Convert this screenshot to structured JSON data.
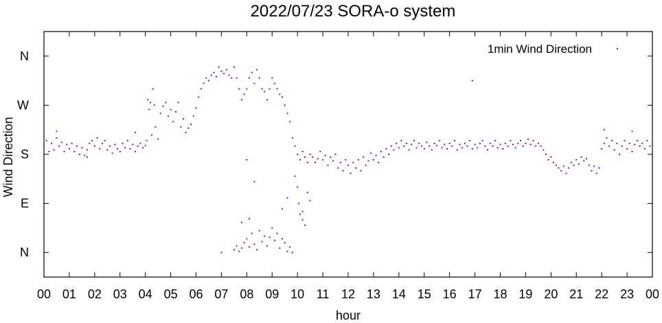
{
  "chart_data": {
    "type": "scatter",
    "title": "2022/07/23 SORA-o system",
    "xlabel": "hour",
    "ylabel": "Wind Direction",
    "xlim": [
      0,
      24
    ],
    "ylim": [
      -45,
      405
    ],
    "x_ticks": [
      {
        "value": 0,
        "label": "00"
      },
      {
        "value": 1,
        "label": "01"
      },
      {
        "value": 2,
        "label": "02"
      },
      {
        "value": 3,
        "label": "03"
      },
      {
        "value": 4,
        "label": "04"
      },
      {
        "value": 5,
        "label": "05"
      },
      {
        "value": 6,
        "label": "06"
      },
      {
        "value": 7,
        "label": "07"
      },
      {
        "value": 8,
        "label": "08"
      },
      {
        "value": 9,
        "label": "09"
      },
      {
        "value": 10,
        "label": "10"
      },
      {
        "value": 11,
        "label": "11"
      },
      {
        "value": 12,
        "label": "12"
      },
      {
        "value": 13,
        "label": "13"
      },
      {
        "value": 14,
        "label": "14"
      },
      {
        "value": 15,
        "label": "15"
      },
      {
        "value": 16,
        "label": "16"
      },
      {
        "value": 17,
        "label": "17"
      },
      {
        "value": 18,
        "label": "18"
      },
      {
        "value": 19,
        "label": "19"
      },
      {
        "value": 20,
        "label": "20"
      },
      {
        "value": 21,
        "label": "21"
      },
      {
        "value": 22,
        "label": "22"
      },
      {
        "value": 23,
        "label": "23"
      },
      {
        "value": 24,
        "label": "00"
      }
    ],
    "y_ticks": [
      {
        "value": 0,
        "label": "N"
      },
      {
        "value": 90,
        "label": "E"
      },
      {
        "value": 180,
        "label": "S"
      },
      {
        "value": 270,
        "label": "W"
      },
      {
        "value": 360,
        "label": "N"
      }
    ],
    "grid": false,
    "legend": {
      "position": "top-right"
    },
    "series": [
      {
        "name": "1min Wind Direction",
        "color": "#9400d3",
        "marker": "dot",
        "points": [
          [
            0.0,
            195
          ],
          [
            0.1,
            205
          ],
          [
            0.2,
            185
          ],
          [
            0.3,
            200
          ],
          [
            0.4,
            188
          ],
          [
            0.5,
            210
          ],
          [
            0.6,
            195
          ],
          [
            0.7,
            202
          ],
          [
            0.8,
            185
          ],
          [
            0.9,
            198
          ],
          [
            1.0,
            190
          ],
          [
            1.1,
            200
          ],
          [
            1.2,
            185
          ],
          [
            1.3,
            195
          ],
          [
            1.4,
            180
          ],
          [
            1.5,
            192
          ],
          [
            1.6,
            178
          ],
          [
            1.7,
            188
          ],
          [
            1.8,
            200
          ],
          [
            1.9,
            205
          ],
          [
            2.0,
            195
          ],
          [
            2.1,
            210
          ],
          [
            2.2,
            190
          ],
          [
            2.3,
            200
          ],
          [
            2.4,
            205
          ],
          [
            2.5,
            188
          ],
          [
            2.6,
            195
          ],
          [
            2.7,
            182
          ],
          [
            2.8,
            198
          ],
          [
            2.9,
            190
          ],
          [
            3.0,
            185
          ],
          [
            3.1,
            200
          ],
          [
            3.2,
            192
          ],
          [
            3.3,
            205
          ],
          [
            3.4,
            190
          ],
          [
            3.5,
            198
          ],
          [
            3.6,
            185
          ],
          [
            3.7,
            195
          ],
          [
            3.8,
            200
          ],
          [
            3.9,
            192
          ],
          [
            4.0,
            196
          ],
          [
            4.05,
            205
          ],
          [
            4.1,
            280
          ],
          [
            4.15,
            262
          ],
          [
            4.2,
            275
          ],
          [
            4.25,
            215
          ],
          [
            4.3,
            300
          ],
          [
            4.35,
            270
          ],
          [
            4.4,
            230
          ],
          [
            4.5,
            208
          ],
          [
            4.6,
            255
          ],
          [
            4.7,
            268
          ],
          [
            4.8,
            275
          ],
          [
            4.9,
            250
          ],
          [
            5.0,
            262
          ],
          [
            5.1,
            240
          ],
          [
            5.2,
            258
          ],
          [
            5.3,
            275
          ],
          [
            5.4,
            230
          ],
          [
            5.5,
            245
          ],
          [
            5.6,
            220
          ],
          [
            5.7,
            228
          ],
          [
            5.8,
            235
          ],
          [
            5.9,
            250
          ],
          [
            6.0,
            265
          ],
          [
            6.1,
            285
          ],
          [
            6.2,
            300
          ],
          [
            6.3,
            310
          ],
          [
            6.4,
            320
          ],
          [
            6.5,
            315
          ],
          [
            6.6,
            325
          ],
          [
            6.7,
            330
          ],
          [
            6.8,
            322
          ],
          [
            6.9,
            340
          ],
          [
            7.0,
            332
          ],
          [
            7.1,
            328
          ],
          [
            7.2,
            335
          ],
          [
            7.3,
            325
          ],
          [
            7.4,
            320
          ],
          [
            7.5,
            340
          ],
          [
            7.6,
            320
          ],
          [
            7.7,
            300
          ],
          [
            7.8,
            280
          ],
          [
            7.9,
            290
          ],
          [
            8.0,
            300
          ],
          [
            8.1,
            320
          ],
          [
            8.2,
            330
          ],
          [
            8.3,
            310
          ],
          [
            8.4,
            335
          ],
          [
            8.5,
            320
          ],
          [
            8.6,
            300
          ],
          [
            8.7,
            295
          ],
          [
            8.8,
            280
          ],
          [
            8.9,
            300
          ],
          [
            9.0,
            320
          ],
          [
            9.1,
            310
          ],
          [
            9.2,
            300
          ],
          [
            9.3,
            290
          ],
          [
            9.4,
            285
          ],
          [
            9.5,
            270
          ],
          [
            9.6,
            255
          ],
          [
            9.7,
            240
          ],
          [
            9.8,
            210
          ],
          [
            9.9,
            195
          ],
          [
            10.0,
            180
          ],
          [
            10.1,
            170
          ],
          [
            10.2,
            185
          ],
          [
            10.3,
            175
          ],
          [
            10.4,
            165
          ],
          [
            10.5,
            180
          ],
          [
            7.5,
            5
          ],
          [
            7.6,
            12
          ],
          [
            7.7,
            2
          ],
          [
            7.8,
            8
          ],
          [
            7.9,
            18
          ],
          [
            8.0,
            25
          ],
          [
            8.1,
            10
          ],
          [
            8.2,
            35
          ],
          [
            8.3,
            15
          ],
          [
            8.4,
            5
          ],
          [
            8.5,
            40
          ],
          [
            8.6,
            20
          ],
          [
            8.7,
            30
          ],
          [
            8.8,
            12
          ],
          [
            8.9,
            28
          ],
          [
            9.0,
            45
          ],
          [
            9.1,
            22
          ],
          [
            9.2,
            35
          ],
          [
            9.3,
            8
          ],
          [
            9.4,
            25
          ],
          [
            9.5,
            18
          ],
          [
            9.6,
            2
          ],
          [
            9.7,
            10
          ],
          [
            9.8,
            0
          ],
          [
            10.0,
            120
          ],
          [
            10.1,
            70
          ],
          [
            10.2,
            60
          ],
          [
            10.3,
            50
          ],
          [
            10.4,
            110
          ],
          [
            10.5,
            95
          ],
          [
            7.0,
            0
          ],
          [
            7.8,
            55
          ],
          [
            8.1,
            62
          ],
          [
            8.0,
            170
          ],
          [
            8.3,
            130
          ],
          [
            9.4,
            80
          ],
          [
            9.6,
            100
          ],
          [
            9.9,
            140
          ],
          [
            10.05,
            90
          ],
          [
            10.2,
            75
          ],
          [
            10.6,
            175
          ],
          [
            10.7,
            165
          ],
          [
            10.8,
            172
          ],
          [
            10.9,
            185
          ],
          [
            11.0,
            170
          ],
          [
            11.1,
            178
          ],
          [
            11.2,
            160
          ],
          [
            11.3,
            175
          ],
          [
            11.4,
            168
          ],
          [
            11.5,
            180
          ],
          [
            11.6,
            155
          ],
          [
            11.7,
            165
          ],
          [
            11.8,
            150
          ],
          [
            11.9,
            170
          ],
          [
            12.0,
            160
          ],
          [
            12.1,
            145
          ],
          [
            12.2,
            165
          ],
          [
            12.3,
            155
          ],
          [
            12.4,
            170
          ],
          [
            12.5,
            150
          ],
          [
            12.6,
            175
          ],
          [
            12.7,
            160
          ],
          [
            12.8,
            168
          ],
          [
            12.9,
            182
          ],
          [
            13.0,
            170
          ],
          [
            13.1,
            178
          ],
          [
            13.2,
            165
          ],
          [
            13.3,
            185
          ],
          [
            13.4,
            175
          ],
          [
            13.5,
            190
          ],
          [
            13.6,
            180
          ],
          [
            13.7,
            195
          ],
          [
            13.8,
            188
          ],
          [
            13.9,
            200
          ],
          [
            14.0,
            192
          ],
          [
            14.1,
            205
          ],
          [
            14.2,
            195
          ],
          [
            14.3,
            200
          ],
          [
            14.4,
            188
          ],
          [
            14.5,
            198
          ],
          [
            14.6,
            205
          ],
          [
            14.7,
            192
          ],
          [
            14.8,
            200
          ],
          [
            14.9,
            195
          ],
          [
            15.0,
            190
          ],
          [
            15.1,
            202
          ],
          [
            15.2,
            195
          ],
          [
            15.3,
            188
          ],
          [
            15.4,
            200
          ],
          [
            15.5,
            196
          ],
          [
            15.6,
            205
          ],
          [
            15.7,
            192
          ],
          [
            15.8,
            198
          ],
          [
            15.9,
            190
          ],
          [
            16.0,
            200
          ],
          [
            16.1,
            195
          ],
          [
            16.2,
            205
          ],
          [
            16.3,
            188
          ],
          [
            16.4,
            198
          ],
          [
            16.5,
            192
          ],
          [
            16.6,
            200
          ],
          [
            16.7,
            195
          ],
          [
            16.8,
            205
          ],
          [
            16.9,
            190
          ],
          [
            17.0,
            198
          ],
          [
            17.1,
            192
          ],
          [
            17.2,
            200
          ],
          [
            17.3,
            205
          ],
          [
            17.4,
            195
          ],
          [
            17.5,
            188
          ],
          [
            17.6,
            200
          ],
          [
            17.7,
            195
          ],
          [
            17.8,
            205
          ],
          [
            17.9,
            192
          ],
          [
            18.0,
            198
          ],
          [
            18.1,
            190
          ],
          [
            18.2,
            200
          ],
          [
            18.3,
            195
          ],
          [
            18.4,
            205
          ],
          [
            18.5,
            198
          ],
          [
            18.6,
            192
          ],
          [
            18.7,
            200
          ],
          [
            18.8,
            205
          ],
          [
            18.9,
            195
          ],
          [
            19.0,
            200
          ],
          [
            19.1,
            208
          ],
          [
            19.2,
            198
          ],
          [
            19.3,
            205
          ],
          [
            19.4,
            195
          ],
          [
            19.5,
            200
          ],
          [
            19.6,
            195
          ],
          [
            19.7,
            188
          ],
          [
            19.8,
            180
          ],
          [
            19.9,
            170
          ],
          [
            20.0,
            175
          ],
          [
            20.1,
            165
          ],
          [
            20.2,
            160
          ],
          [
            20.3,
            155
          ],
          [
            20.4,
            150
          ],
          [
            20.5,
            158
          ],
          [
            20.6,
            145
          ],
          [
            20.7,
            155
          ],
          [
            20.8,
            165
          ],
          [
            20.9,
            160
          ],
          [
            21.0,
            170
          ],
          [
            21.1,
            162
          ],
          [
            21.2,
            175
          ],
          [
            21.3,
            168
          ],
          [
            21.4,
            172
          ],
          [
            21.5,
            160
          ],
          [
            21.6,
            150
          ],
          [
            21.7,
            158
          ],
          [
            21.8,
            145
          ],
          [
            21.9,
            155
          ],
          [
            22.0,
            190
          ],
          [
            22.1,
            200
          ],
          [
            22.2,
            210
          ],
          [
            22.3,
            195
          ],
          [
            22.4,
            205
          ],
          [
            22.5,
            188
          ],
          [
            22.6,
            200
          ],
          [
            22.7,
            180
          ],
          [
            22.8,
            195
          ],
          [
            22.9,
            205
          ],
          [
            23.0,
            190
          ],
          [
            23.1,
            200
          ],
          [
            23.2,
            185
          ],
          [
            23.3,
            198
          ],
          [
            23.4,
            205
          ],
          [
            23.5,
            195
          ],
          [
            23.6,
            200
          ],
          [
            23.7,
            190
          ],
          [
            23.8,
            205
          ],
          [
            23.9,
            195
          ],
          [
            16.9,
            315
          ],
          [
            23.2,
            222
          ],
          [
            22.1,
            225
          ],
          [
            0.5,
            222
          ],
          [
            1.7,
            175
          ],
          [
            3.6,
            220
          ]
        ]
      }
    ]
  }
}
